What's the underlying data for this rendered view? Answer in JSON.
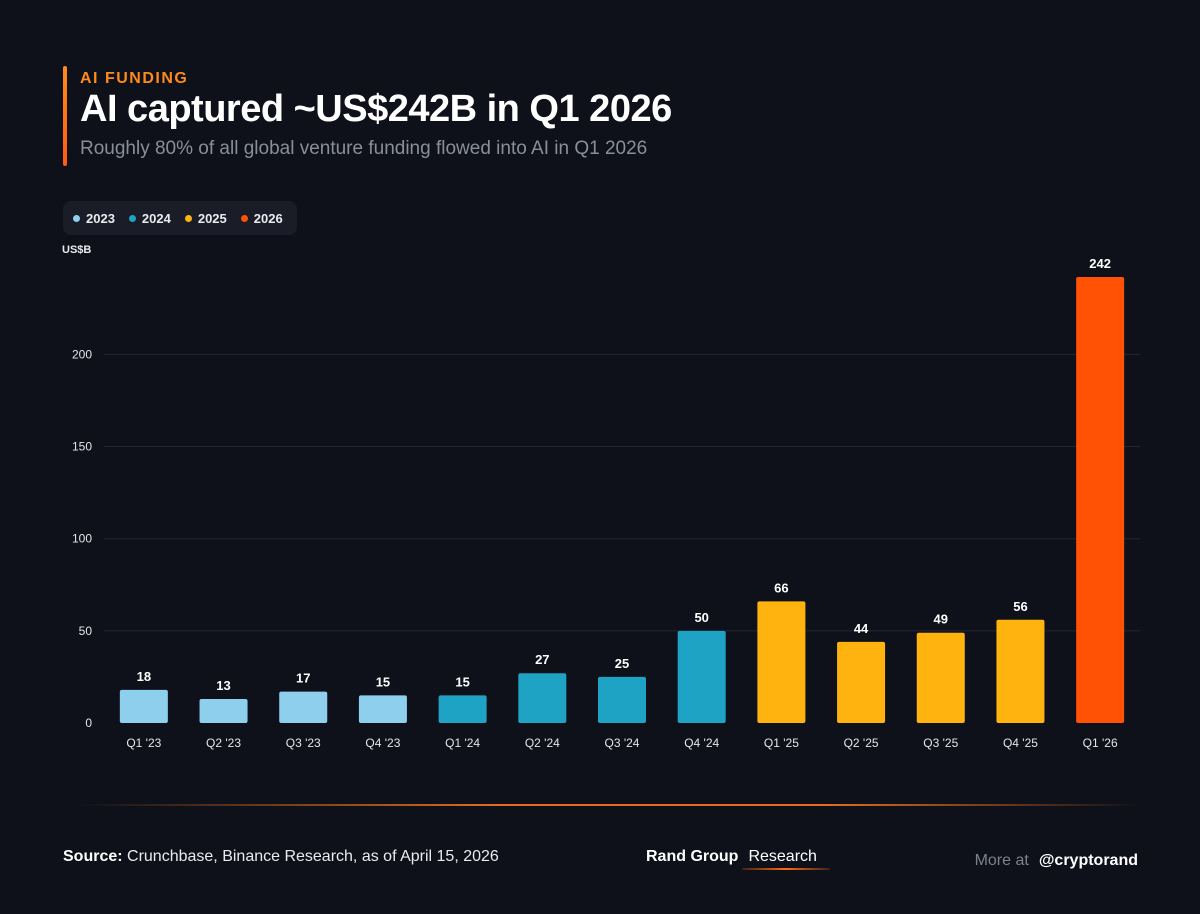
{
  "header": {
    "kicker": "AI FUNDING",
    "title": "AI captured ~US$242B in Q1 2026",
    "subtitle": "Roughly 80% of all global venture funding flowed into AI in Q1 2026"
  },
  "legend": [
    {
      "label": "2023",
      "color": "#8ecfee"
    },
    {
      "label": "2024",
      "color": "#1fa3c4"
    },
    {
      "label": "2025",
      "color": "#ffb30f"
    },
    {
      "label": "2026",
      "color": "#ff5205"
    }
  ],
  "chart_data": {
    "type": "bar",
    "ylabel": "US$B",
    "ylim": [
      0,
      242
    ],
    "yticks": [
      0,
      50,
      100,
      150,
      200
    ],
    "grid": true,
    "categories": [
      "Q1 '23",
      "Q2 '23",
      "Q3 '23",
      "Q4 '23",
      "Q1 '24",
      "Q2 '24",
      "Q3 '24",
      "Q4 '24",
      "Q1 '25",
      "Q2 '25",
      "Q3 '25",
      "Q4 '25",
      "Q1 '26"
    ],
    "values": [
      18,
      13,
      17,
      15,
      15,
      27,
      25,
      50,
      66,
      44,
      49,
      56,
      242
    ],
    "series_year": [
      "2023",
      "2023",
      "2023",
      "2023",
      "2024",
      "2024",
      "2024",
      "2024",
      "2025",
      "2025",
      "2025",
      "2025",
      "2026"
    ]
  },
  "footer": {
    "source_label": "Source:",
    "source_text": " Crunchbase, Binance Research, as of April 15, 2026",
    "brand_name": "Rand Group",
    "brand_tag": "Research",
    "more_label": "More at",
    "more_handle": "@cryptorand"
  }
}
